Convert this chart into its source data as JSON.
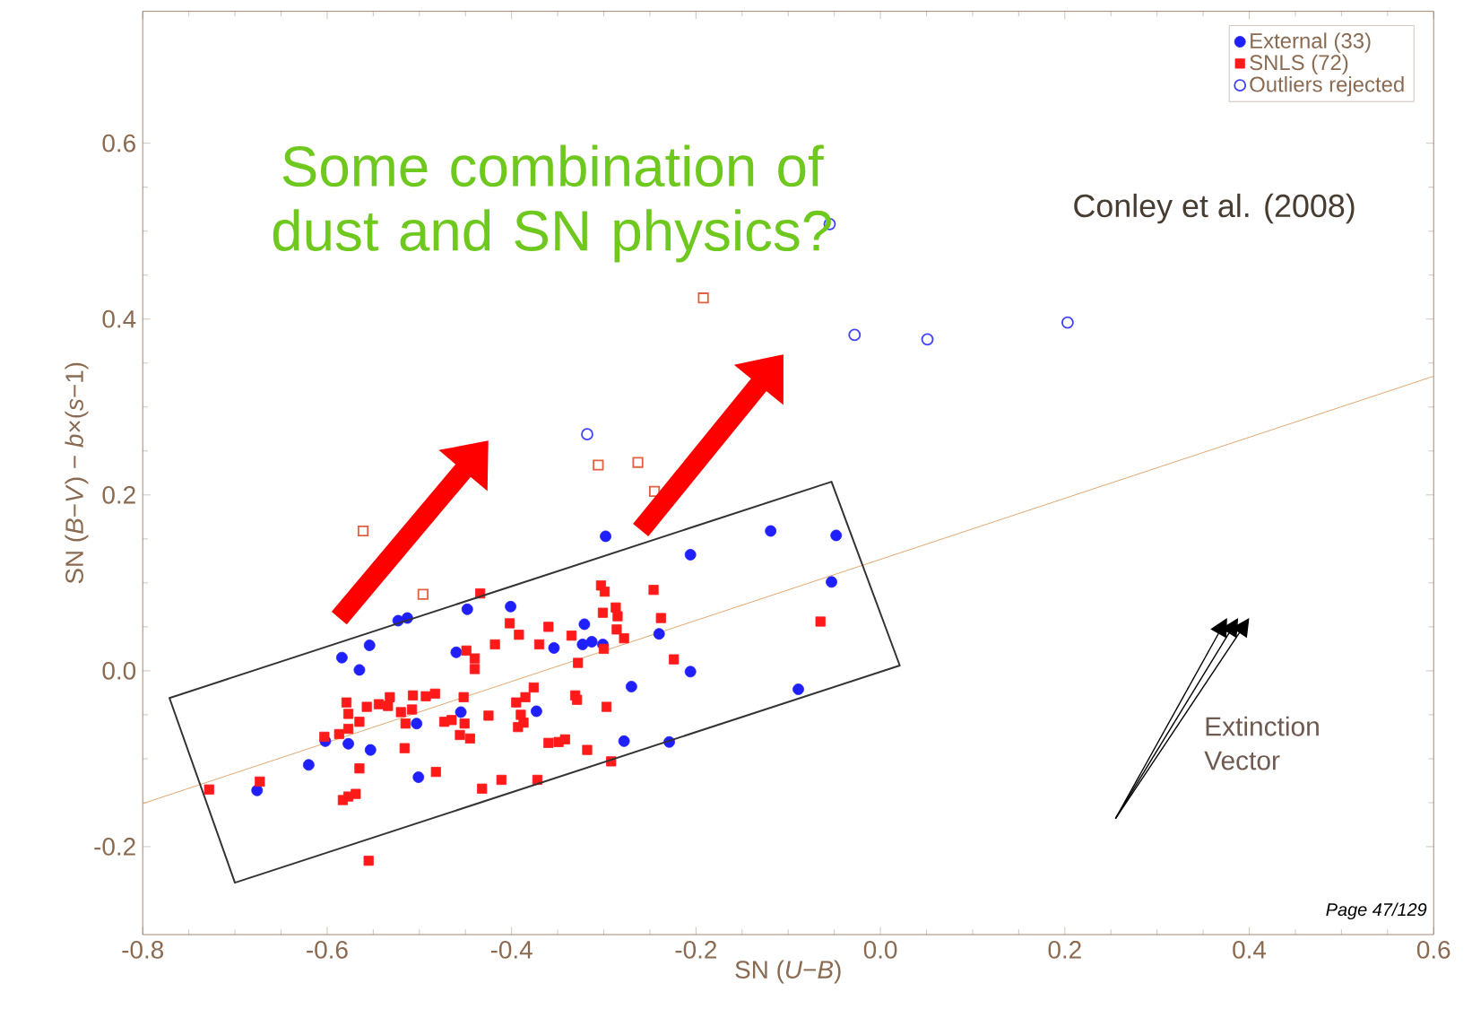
{
  "chart_data": {
    "type": "scatter",
    "xlabel": "SN (*U*−*B*)",
    "ylabel": "SN (*B*−*V*) − *b*×(*s*−1)",
    "xlim": [
      -0.8,
      0.6
    ],
    "ylim": [
      -0.3,
      0.75
    ],
    "xticks": [
      -0.8,
      -0.6,
      -0.4,
      -0.2,
      {
        "value": 0,
        "label": "0.0"
      },
      0.2,
      0.4,
      0.6
    ],
    "yticks": [
      -0.2,
      {
        "value": 0,
        "label": "0.0"
      },
      0.2,
      0.4,
      0.6
    ],
    "legend": "top right",
    "annotations": [
      "Some combination of dust and SN physics?",
      "Conley et al. (2008)",
      "Extinction Vector",
      "Page 47/129"
    ],
    "series": [
      {
        "name": "External (33)",
        "color": "#2020ff",
        "marker": "circle",
        "x": [
          -0.584,
          -0.554,
          -0.565,
          -0.523,
          -0.513,
          -0.448,
          -0.401,
          -0.46,
          -0.354,
          -0.321,
          -0.313,
          -0.301,
          -0.323,
          -0.298,
          -0.206,
          -0.24,
          -0.27,
          -0.206,
          -0.119,
          -0.048,
          -0.053,
          -0.089,
          -0.278,
          -0.229,
          -0.373,
          -0.455,
          -0.503,
          -0.553,
          -0.577,
          -0.602,
          -0.62,
          -0.676,
          -0.501
        ],
        "values": [
          0.015,
          0.029,
          0.001,
          0.057,
          0.06,
          0.07,
          0.073,
          0.021,
          0.026,
          0.053,
          0.033,
          0.03,
          0.03,
          0.153,
          0.132,
          0.042,
          -0.018,
          -0.001,
          0.159,
          0.154,
          0.101,
          -0.021,
          -0.08,
          -0.081,
          -0.046,
          -0.047,
          -0.06,
          -0.09,
          -0.083,
          -0.08,
          -0.107,
          -0.136,
          -0.121
        ]
      },
      {
        "name": "SNLS (72)",
        "color": "#ff1a1a",
        "marker": "square",
        "x": [
          -0.728,
          -0.673,
          -0.603,
          -0.587,
          -0.577,
          -0.579,
          -0.577,
          -0.565,
          -0.557,
          -0.565,
          -0.569,
          -0.583,
          -0.577,
          -0.555,
          -0.544,
          -0.534,
          -0.532,
          -0.515,
          -0.516,
          -0.507,
          -0.508,
          -0.493,
          -0.483,
          -0.482,
          -0.473,
          -0.465,
          -0.451,
          -0.456,
          -0.452,
          -0.445,
          -0.449,
          -0.44,
          -0.44,
          -0.434,
          -0.432,
          -0.425,
          -0.411,
          -0.402,
          -0.392,
          -0.395,
          -0.393,
          -0.387,
          -0.385,
          -0.376,
          -0.39,
          -0.37,
          -0.372,
          -0.36,
          -0.349,
          -0.342,
          -0.335,
          -0.328,
          -0.331,
          -0.329,
          -0.318,
          -0.303,
          -0.299,
          -0.301,
          -0.297,
          -0.292,
          -0.287,
          -0.285,
          -0.286,
          -0.278,
          -0.246,
          -0.238,
          -0.224,
          -0.065,
          -0.3,
          -0.36,
          -0.418,
          -0.52
        ],
        "values": [
          -0.135,
          -0.126,
          -0.075,
          -0.072,
          -0.066,
          -0.036,
          -0.049,
          -0.058,
          -0.041,
          -0.111,
          -0.14,
          -0.147,
          -0.143,
          -0.216,
          -0.038,
          -0.04,
          -0.03,
          -0.06,
          -0.088,
          -0.028,
          -0.044,
          -0.029,
          -0.026,
          -0.115,
          -0.058,
          -0.056,
          -0.06,
          -0.073,
          -0.03,
          -0.077,
          0.023,
          0.014,
          0.002,
          0.088,
          -0.134,
          -0.051,
          -0.124,
          0.054,
          0.041,
          -0.036,
          -0.064,
          -0.059,
          -0.03,
          -0.019,
          -0.05,
          0.03,
          -0.124,
          0.05,
          -0.081,
          -0.078,
          0.04,
          0.009,
          -0.028,
          -0.033,
          -0.09,
          0.097,
          0.09,
          0.066,
          -0.041,
          -0.103,
          0.072,
          0.062,
          0.047,
          0.037,
          0.092,
          0.06,
          0.013,
          0.056,
          0.025,
          -0.082,
          0.03,
          -0.047
        ]
      },
      {
        "name": "Outliers rejected",
        "color": "#4040ff",
        "marker": "circle",
        "x": [
          -0.318,
          -0.055,
          -0.028,
          0.051,
          0.203
        ],
        "values": [
          0.269,
          0.508,
          0.382,
          0.377,
          0.396
        ]
      },
      {
        "color": "#e06040",
        "marker": "square",
        "x": [
          -0.561,
          -0.496,
          -0.306,
          -0.263,
          -0.245,
          -0.192
        ],
        "values": [
          0.159,
          0.087,
          0.234,
          0.237,
          0.204,
          0.424
        ]
      },
      {
        "type": "line",
        "color": "#e0a870",
        "marker": "none",
        "x": [
          -0.8,
          0.6
        ],
        "values": [
          -0.151,
          0.335
        ]
      }
    ]
  }
}
